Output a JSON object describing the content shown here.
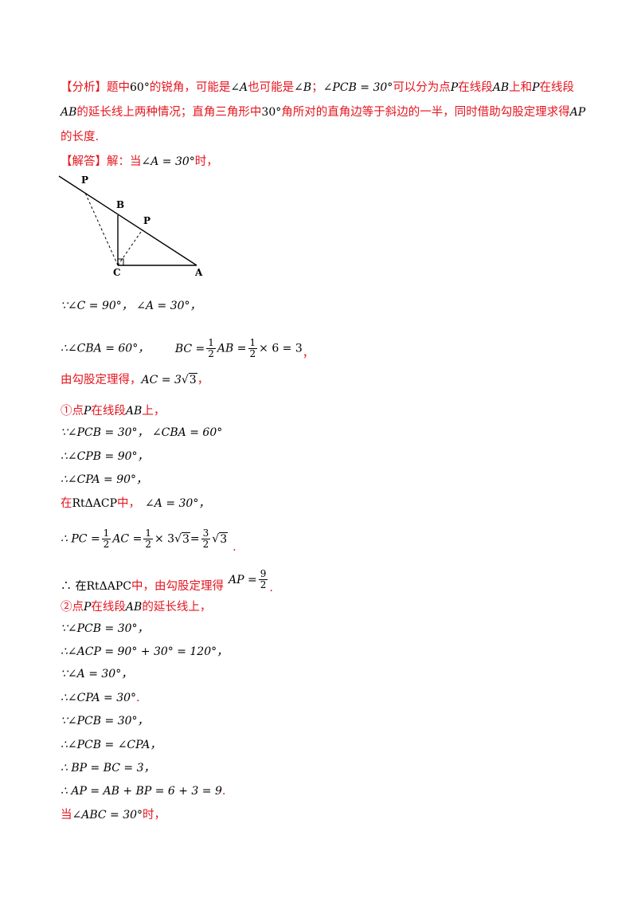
{
  "analysis": {
    "tag": "【分析】",
    "l1a": "题中",
    "l1_60": "60°",
    "l1b": "的锐角，可能是",
    "l1_angA": "∠A",
    "l1c": "也可能是",
    "l1_angB": "∠B",
    "l1d": "；",
    "l1_pcb": "∠PCB = 30°",
    "l1e": "可以分为点",
    "l1_P1": "P",
    "l1f": "在线段",
    "l1_AB": "AB",
    "l1g": "上和",
    "l1_P2": "P",
    "l1h": "在线段",
    "l2_AB": "AB",
    "l2a": "的延长线上两种情况；直角三角形中",
    "l2_30": "30°",
    "l2b": "角所对的直角边等于斜边的一半，同时借助勾股定理求得",
    "l2_AP": "AP",
    "l3": "的长度."
  },
  "solution": {
    "tag": "【解答】",
    "intro": "解：当",
    "intro_math": "∠A = 30°",
    "intro_end": "时，"
  },
  "figure": {
    "labels": {
      "P1": "P",
      "B": "B",
      "P2": "P",
      "C": "C",
      "A": "A"
    }
  },
  "lines": {
    "s1": "∵∠C = 90°，  ∠A = 30°，",
    "s2a": "∴∠CBA = 60°，",
    "s2b": "BC =",
    "s2_f1n": "1",
    "s2_f1d": "2",
    "s2c": "AB =",
    "s2_f2n": "1",
    "s2_f2d": "2",
    "s2d": "× 6 = 3",
    "s2e": "，",
    "s3a": "由勾股定理得，",
    "s3b": "AC = 3",
    "s3_rad": "3",
    "s3c": "，",
    "c1a": "①点",
    "c1_P": "P",
    "c1b": "在线段",
    "c1_AB": "AB",
    "c1c": "上，",
    "c1_s1": "∵∠PCB = 30°，  ∠CBA = 60°",
    "c1_s2": "∴∠CPB = 90°，",
    "c1_s3": "∴∠CPA = 90°，",
    "c1_s4a": "在",
    "c1_s4b": "RtΔACP",
    "c1_s4c": "中，",
    "c1_s4d": "∠A = 30°，",
    "c1_s5a": "∴ PC =",
    "c1_s5_f1n": "1",
    "c1_s5_f1d": "2",
    "c1_s5b": "AC =",
    "c1_s5_f2n": "1",
    "c1_s5_f2d": "2",
    "c1_s5c": "× 3",
    "c1_s5_rad1": "3",
    "c1_s5d": "=",
    "c1_s5_f3n": "3",
    "c1_s5_f3d": "2",
    "c1_s5_rad2": "3",
    "c1_s5e": ".",
    "c1_s6a": "∴ 在",
    "c1_s6b": "RtΔAPC",
    "c1_s6c": "中，由勾股定理得",
    "c1_s6d": "AP =",
    "c1_s6_fn": "9",
    "c1_s6_fd": "2",
    "c1_s6e": ".",
    "c2a": "②点",
    "c2_P": "P",
    "c2b": "在线段",
    "c2_AB": "AB",
    "c2c": "的延长线上，",
    "c2_s1": "∵∠PCB = 30°，",
    "c2_s2": "∴∠ACP = 90° + 30° = 120°，",
    "c2_s3": "∵∠A = 30°，",
    "c2_s4": "∴∠CPA = 30°",
    "c2_s4e": ".",
    "c2_s5": "∵∠PCB = 30°，",
    "c2_s6": "∴∠PCB = ∠CPA，",
    "c2_s7": "∴ BP = BC = 3，",
    "c2_s8": "∴ AP = AB + BP = 6 + 3 = 9",
    "c2_s8e": ".",
    "last_a": "当",
    "last_b": "∠ABC = 30°",
    "last_c": "时，"
  },
  "colors": {
    "text_red": "#e4161f",
    "text_black": "#000000"
  }
}
